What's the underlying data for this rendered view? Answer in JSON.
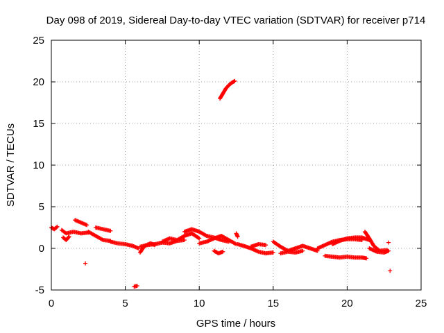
{
  "chart_data": {
    "type": "scatter",
    "title": "Day 098 of 2019, Sidereal Day-to-day VTEC variation (SDTVAR) for receiver p714",
    "xlabel": "GPS time / hours",
    "ylabel": "SDTVAR / TECUs",
    "xlim": [
      0,
      25
    ],
    "ylim": [
      -5,
      25
    ],
    "xticks": [
      0,
      5,
      10,
      15,
      20,
      25
    ],
    "yticks": [
      -5,
      0,
      5,
      10,
      15,
      20,
      25
    ],
    "grid": true,
    "marker": "+",
    "color": "#ff0000",
    "series": [
      {
        "name": "p714",
        "segments": [
          {
            "x": [
              0.0,
              0.2,
              0.4
            ],
            "y": [
              2.5,
              2.3,
              2.6
            ]
          },
          {
            "x": [
              0.7,
              1.0,
              1.5,
              2.0,
              2.5
            ],
            "y": [
              2.2,
              1.8,
              2.0,
              1.8,
              1.9
            ]
          },
          {
            "x": [
              0.8,
              1.0,
              1.2
            ],
            "y": [
              1.3,
              1.0,
              1.4
            ]
          },
          {
            "x": [
              1.6,
              2.0,
              2.4
            ],
            "y": [
              3.4,
              3.1,
              2.8
            ]
          },
          {
            "x": [
              2.5,
              3.0,
              3.5,
              4.0
            ],
            "y": [
              2.0,
              1.5,
              1.0,
              0.9
            ]
          },
          {
            "x": [
              3.0,
              3.5,
              4.0
            ],
            "y": [
              2.5,
              2.3,
              2.1
            ]
          },
          {
            "x": [
              4.0,
              4.5,
              5.0,
              5.5,
              5.9
            ],
            "y": [
              0.8,
              0.6,
              0.5,
              0.3,
              0.0
            ]
          },
          {
            "x": [
              6.0,
              6.3,
              6.7,
              7.0
            ],
            "y": [
              -0.5,
              0.3,
              0.6,
              0.4
            ]
          },
          {
            "x": [
              6.0,
              6.5,
              7.0,
              7.5,
              8.0,
              8.5,
              9.0
            ],
            "y": [
              0.2,
              0.4,
              0.5,
              0.7,
              0.6,
              0.9,
              1.0
            ]
          },
          {
            "x": [
              7.5,
              8.0,
              8.5,
              9.0,
              9.5,
              10.0
            ],
            "y": [
              0.8,
              1.2,
              1.0,
              1.5,
              1.8,
              1.2
            ]
          },
          {
            "x": [
              9.0,
              9.5,
              10.0,
              10.5,
              11.0,
              11.5,
              12.0
            ],
            "y": [
              2.0,
              2.3,
              2.0,
              1.5,
              1.3,
              1.0,
              0.8
            ]
          },
          {
            "x": [
              10.0,
              10.5,
              11.0,
              11.5,
              12.0,
              12.5
            ],
            "y": [
              0.6,
              0.8,
              1.2,
              1.5,
              1.0,
              0.5
            ]
          },
          {
            "x": [
              11.0,
              11.3,
              11.6
            ],
            "y": [
              -0.3,
              -0.6,
              -0.4
            ]
          },
          {
            "x": [
              11.4,
              11.6,
              11.8,
              12.0,
              12.2,
              12.4
            ],
            "y": [
              18.0,
              18.6,
              19.2,
              19.6,
              19.9,
              20.1
            ]
          },
          {
            "x": [
              12.5,
              12.6
            ],
            "y": [
              1.8,
              1.4
            ]
          },
          {
            "x": [
              12.6,
              13.0,
              13.5,
              14.0,
              14.5,
              15.0
            ],
            "y": [
              0.5,
              0.3,
              0.0,
              -0.4,
              -0.6,
              -0.5
            ]
          },
          {
            "x": [
              13.5,
              14.0,
              14.5
            ],
            "y": [
              0.2,
              0.5,
              0.4
            ]
          },
          {
            "x": [
              15.0,
              15.5,
              16.0,
              16.5,
              17.0,
              17.5,
              18.0
            ],
            "y": [
              0.8,
              0.2,
              -0.3,
              0.0,
              0.3,
              0.0,
              -0.3
            ]
          },
          {
            "x": [
              15.5,
              16.0,
              16.5,
              17.0
            ],
            "y": [
              -0.6,
              -0.4,
              -0.5,
              -0.3
            ]
          },
          {
            "x": [
              18.0,
              18.5,
              19.0,
              19.5,
              20.0,
              20.5,
              21.0
            ],
            "y": [
              0.0,
              0.4,
              0.8,
              1.0,
              1.1,
              1.1,
              1.0
            ]
          },
          {
            "x": [
              19.0,
              19.5,
              20.0,
              20.5,
              21.0,
              21.5
            ],
            "y": [
              0.5,
              0.9,
              1.2,
              1.3,
              1.3,
              1.0
            ]
          },
          {
            "x": [
              18.5,
              19.0,
              19.5,
              20.0,
              20.5,
              21.0,
              21.3
            ],
            "y": [
              -0.9,
              -1.0,
              -1.1,
              -1.0,
              -1.1,
              -1.1,
              -1.2
            ]
          },
          {
            "x": [
              21.2,
              21.5,
              21.8,
              22.2,
              22.7
            ],
            "y": [
              2.0,
              1.2,
              0.3,
              -0.3,
              -0.2
            ]
          },
          {
            "x": [
              21.5,
              22.0,
              22.5,
              22.8
            ],
            "y": [
              0.0,
              -0.4,
              -0.5,
              -0.3
            ]
          },
          {
            "x": [
              22.8
            ],
            "y": [
              0.7
            ]
          },
          {
            "x": [
              2.3
            ],
            "y": [
              -1.8
            ]
          },
          {
            "x": [
              5.6,
              5.8
            ],
            "y": [
              -4.6,
              -4.5
            ]
          },
          {
            "x": [
              22.9
            ],
            "y": [
              -2.7
            ]
          }
        ]
      }
    ]
  }
}
